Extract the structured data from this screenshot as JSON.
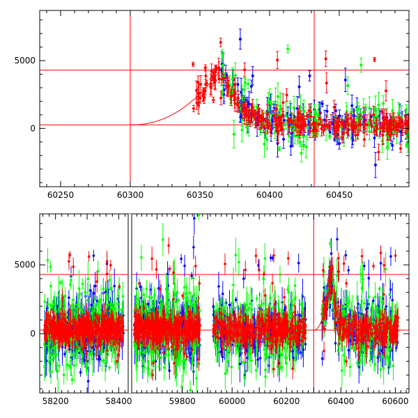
{
  "chart_data": [
    {
      "type": "scatter",
      "panel": "top",
      "xlim": [
        60235,
        60500
      ],
      "ylim": [
        -4300,
        8700
      ],
      "xticks": [
        60250,
        60300,
        60350,
        60400,
        60450
      ],
      "yticks": [
        0,
        5000
      ],
      "tick_labels_x": [
        "60250",
        "60300",
        "60350",
        "60400",
        "60450"
      ],
      "tick_labels_y": [
        "0",
        "5000"
      ],
      "ref_lines": {
        "horizontal": [
          4300,
          260
        ],
        "vertical": [
          60300,
          60432
        ],
        "color": "#ff0000"
      },
      "model_curve": {
        "description_of_shape": "rising then falling",
        "t0": 60300,
        "peak_x": 60365,
        "peak_y": 4350,
        "base": 260,
        "end_x": 60500
      },
      "series": [
        {
          "color": "#ff0000",
          "seed": 11
        },
        {
          "color": "#0000ff",
          "seed": 22
        },
        {
          "color": "#00ff00",
          "seed": 33
        }
      ]
    },
    {
      "type": "scatter",
      "panel": "bottom",
      "segments": [
        {
          "xlim": [
            58150,
            58430
          ],
          "xticks": [
            58200,
            58300,
            58400
          ],
          "tick_labels_x": [
            "58200",
            "",
            "58400"
          ],
          "data_range": [
            58165,
            58415
          ],
          "density": 900
        },
        {
          "xlim": [
            59600,
            59900
          ],
          "xticks": [
            59700,
            59800
          ],
          "tick_labels_x": [
            "",
            "59800"
          ],
          "data_range": [
            59610,
            59870
          ],
          "density": 900
        },
        {
          "xlim": [
            59910,
            60650
          ],
          "xticks": [
            60000,
            60100,
            60200,
            60300,
            60400,
            60500,
            60600
          ],
          "tick_labels_x": [
            "60000",
            "",
            "60200",
            "",
            "60400",
            "",
            "60600"
          ],
          "data_range": [
            59930,
            60610
          ],
          "density": 1500,
          "gap": [
            60270,
            60330
          ]
        }
      ],
      "ylim": [
        -4300,
        8700
      ],
      "yticks": [
        0,
        5000
      ],
      "tick_labels_y": [
        "0",
        "5000"
      ],
      "ref_lines": {
        "horizontal": [
          4300,
          260
        ],
        "vertical": [
          60300
        ],
        "color": "#ff0000"
      },
      "model_curve": {
        "t0": 60300,
        "peak_x": 60365,
        "peak_y": 4350,
        "base": 260
      },
      "series": [
        {
          "color": "#ff0000",
          "seed": 44
        },
        {
          "color": "#0000ff",
          "seed": 55
        },
        {
          "color": "#00ff00",
          "seed": 66
        }
      ]
    }
  ]
}
